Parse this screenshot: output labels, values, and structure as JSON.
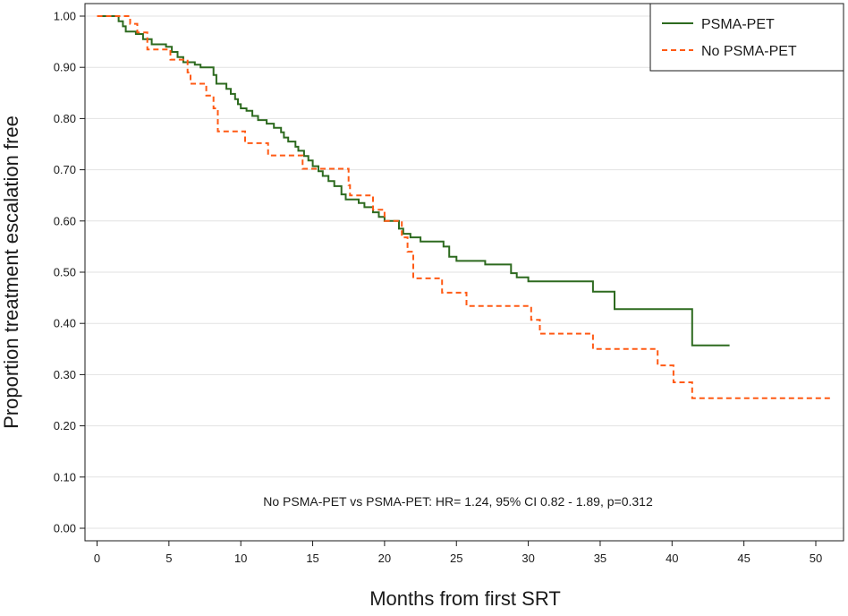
{
  "chart_data": {
    "type": "line",
    "title": "",
    "xlabel": "Months from first SRT",
    "ylabel": "Proportion treatment escalation free",
    "xlim": [
      0,
      52
    ],
    "ylim": [
      0,
      1.0
    ],
    "x_ticks": [
      0,
      5,
      10,
      15,
      20,
      25,
      30,
      35,
      40,
      45,
      50
    ],
    "y_ticks": [
      0.0,
      0.1,
      0.2,
      0.3,
      0.4,
      0.5,
      0.6,
      0.7,
      0.8,
      0.9,
      1.0
    ],
    "x_tick_labels": [
      "0",
      "5",
      "10",
      "15",
      "20",
      "25",
      "30",
      "35",
      "40",
      "45",
      "50"
    ],
    "y_tick_labels": [
      "0.00",
      "0.10",
      "0.20",
      "0.30",
      "0.40",
      "0.50",
      "0.60",
      "0.70",
      "0.80",
      "0.90",
      "1.00"
    ],
    "grid": "horizontal",
    "legend_position": "top-right",
    "annotation": "No PSMA-PET vs PSMA-PET: HR= 1.24, 95% CI 0.82 -  1.89, p=0.312",
    "series": [
      {
        "name": "PSMA-PET",
        "color": "#2d6a1f",
        "style": "solid",
        "step_points": [
          [
            0,
            1.0
          ],
          [
            1.5,
            0.99
          ],
          [
            1.8,
            0.98
          ],
          [
            2.0,
            0.97
          ],
          [
            2.7,
            0.965
          ],
          [
            3.2,
            0.955
          ],
          [
            3.8,
            0.945
          ],
          [
            4.8,
            0.94
          ],
          [
            5.2,
            0.93
          ],
          [
            5.6,
            0.92
          ],
          [
            6.0,
            0.91
          ],
          [
            6.8,
            0.905
          ],
          [
            7.2,
            0.9
          ],
          [
            7.5,
            0.9
          ],
          [
            8.1,
            0.885
          ],
          [
            8.3,
            0.868
          ],
          [
            9.0,
            0.858
          ],
          [
            9.3,
            0.848
          ],
          [
            9.6,
            0.838
          ],
          [
            9.8,
            0.828
          ],
          [
            10.0,
            0.82
          ],
          [
            10.4,
            0.815
          ],
          [
            10.8,
            0.805
          ],
          [
            11.2,
            0.797
          ],
          [
            11.8,
            0.79
          ],
          [
            12.3,
            0.782
          ],
          [
            12.8,
            0.773
          ],
          [
            13.0,
            0.763
          ],
          [
            13.3,
            0.755
          ],
          [
            13.8,
            0.745
          ],
          [
            14.0,
            0.737
          ],
          [
            14.4,
            0.727
          ],
          [
            14.7,
            0.718
          ],
          [
            15.0,
            0.707
          ],
          [
            15.4,
            0.697
          ],
          [
            15.7,
            0.688
          ],
          [
            16.1,
            0.678
          ],
          [
            16.5,
            0.668
          ],
          [
            17.0,
            0.652
          ],
          [
            17.3,
            0.642
          ],
          [
            18.2,
            0.635
          ],
          [
            18.6,
            0.627
          ],
          [
            19.2,
            0.617
          ],
          [
            19.6,
            0.608
          ],
          [
            20.0,
            0.6
          ],
          [
            21.0,
            0.585
          ],
          [
            21.3,
            0.575
          ],
          [
            21.8,
            0.568
          ],
          [
            22.5,
            0.56
          ],
          [
            24.1,
            0.55
          ],
          [
            24.5,
            0.53
          ],
          [
            25.0,
            0.522
          ],
          [
            27.0,
            0.515
          ],
          [
            28.8,
            0.498
          ],
          [
            29.2,
            0.49
          ],
          [
            30.0,
            0.482
          ],
          [
            34.5,
            0.462
          ],
          [
            36.0,
            0.428
          ],
          [
            41.4,
            0.357
          ],
          [
            44.0,
            0.357
          ]
        ]
      },
      {
        "name": "No PSMA-PET",
        "color": "#ff5a14",
        "style": "dashed",
        "step_points": [
          [
            0,
            1.0
          ],
          [
            2.3,
            0.985
          ],
          [
            2.8,
            0.968
          ],
          [
            3.5,
            0.935
          ],
          [
            5.1,
            0.915
          ],
          [
            6.3,
            0.89
          ],
          [
            6.5,
            0.868
          ],
          [
            7.6,
            0.845
          ],
          [
            8.1,
            0.82
          ],
          [
            8.4,
            0.775
          ],
          [
            10.3,
            0.752
          ],
          [
            11.9,
            0.728
          ],
          [
            14.3,
            0.702
          ],
          [
            17.5,
            0.67
          ],
          [
            17.6,
            0.65
          ],
          [
            19.2,
            0.622
          ],
          [
            20.0,
            0.6
          ],
          [
            21.2,
            0.568
          ],
          [
            21.6,
            0.54
          ],
          [
            22.0,
            0.488
          ],
          [
            24.0,
            0.46
          ],
          [
            25.7,
            0.434
          ],
          [
            30.2,
            0.407
          ],
          [
            30.8,
            0.38
          ],
          [
            34.5,
            0.35
          ],
          [
            39.0,
            0.318
          ],
          [
            40.1,
            0.285
          ],
          [
            41.4,
            0.254
          ],
          [
            51.0,
            0.254
          ]
        ]
      }
    ]
  }
}
